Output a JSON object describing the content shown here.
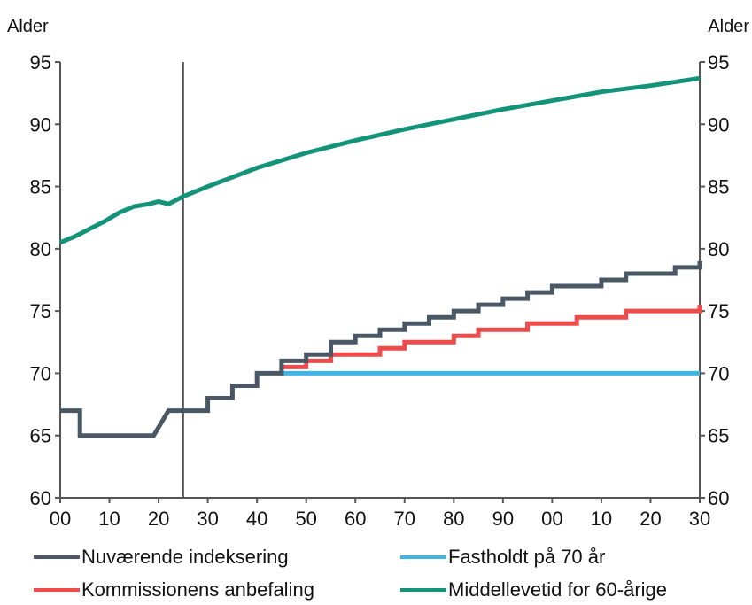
{
  "chart_data": {
    "type": "line",
    "title": "",
    "y_axis_left_label": "Alder",
    "y_axis_right_label": "Alder",
    "ylim": [
      60,
      95
    ],
    "yticks": [
      60,
      65,
      70,
      75,
      80,
      85,
      90,
      95
    ],
    "xlim": [
      2000,
      2130
    ],
    "xticks": [
      2000,
      2010,
      2020,
      2030,
      2040,
      2050,
      2060,
      2070,
      2080,
      2090,
      2100,
      2110,
      2120,
      2130
    ],
    "xtick_labels": [
      "00",
      "10",
      "20",
      "30",
      "40",
      "50",
      "60",
      "70",
      "80",
      "90",
      "00",
      "10",
      "20",
      "30"
    ],
    "reference_line_x": 2025,
    "grid": false,
    "legend_position": "bottom",
    "series": [
      {
        "name": "Nuværende indeksering",
        "color": "#4a5866",
        "step": true,
        "points": [
          [
            2000,
            67
          ],
          [
            2004,
            67
          ],
          [
            2004,
            65
          ],
          [
            2019,
            65
          ],
          [
            2022,
            67
          ],
          [
            2030,
            67
          ],
          [
            2030,
            68
          ],
          [
            2035,
            68
          ],
          [
            2035,
            69
          ],
          [
            2040,
            69
          ],
          [
            2040,
            70
          ],
          [
            2045,
            70
          ],
          [
            2045,
            71
          ],
          [
            2050,
            71
          ],
          [
            2050,
            71.5
          ],
          [
            2055,
            71.5
          ],
          [
            2055,
            72.5
          ],
          [
            2060,
            72.5
          ],
          [
            2060,
            73
          ],
          [
            2065,
            73
          ],
          [
            2065,
            73.5
          ],
          [
            2070,
            73.5
          ],
          [
            2070,
            74
          ],
          [
            2075,
            74
          ],
          [
            2075,
            74.5
          ],
          [
            2080,
            74.5
          ],
          [
            2080,
            75
          ],
          [
            2085,
            75
          ],
          [
            2085,
            75.5
          ],
          [
            2090,
            75.5
          ],
          [
            2090,
            76
          ],
          [
            2095,
            76
          ],
          [
            2095,
            76.5
          ],
          [
            2100,
            76.5
          ],
          [
            2100,
            77
          ],
          [
            2105,
            77
          ],
          [
            2105,
            77
          ],
          [
            2110,
            77
          ],
          [
            2110,
            77.5
          ],
          [
            2115,
            77.5
          ],
          [
            2115,
            78
          ],
          [
            2120,
            78
          ],
          [
            2120,
            78
          ],
          [
            2125,
            78
          ],
          [
            2125,
            78.5
          ],
          [
            2130,
            78.5
          ],
          [
            2130,
            79
          ]
        ]
      },
      {
        "name": "Fastholdt på 70 år",
        "color": "#3fb5e5",
        "step": true,
        "points": [
          [
            2045,
            70
          ],
          [
            2130,
            70
          ]
        ]
      },
      {
        "name": "Kommissionens anbefaling",
        "color": "#ee4b4b",
        "step": true,
        "points": [
          [
            2045,
            70
          ],
          [
            2045,
            70.5
          ],
          [
            2050,
            70.5
          ],
          [
            2050,
            71
          ],
          [
            2055,
            71
          ],
          [
            2055,
            71.5
          ],
          [
            2065,
            71.5
          ],
          [
            2065,
            72
          ],
          [
            2070,
            72
          ],
          [
            2070,
            72.5
          ],
          [
            2075,
            72.5
          ],
          [
            2080,
            72.5
          ],
          [
            2080,
            73
          ],
          [
            2085,
            73
          ],
          [
            2085,
            73.5
          ],
          [
            2095,
            73.5
          ],
          [
            2095,
            74
          ],
          [
            2100,
            74
          ],
          [
            2100,
            74
          ],
          [
            2105,
            74
          ],
          [
            2105,
            74.5
          ],
          [
            2115,
            74.5
          ],
          [
            2115,
            75
          ],
          [
            2130,
            75
          ],
          [
            2130,
            75.5
          ]
        ]
      },
      {
        "name": "Middellevetid for 60-årige",
        "color": "#13937a",
        "step": false,
        "points": [
          [
            2000,
            80.5
          ],
          [
            2003,
            81
          ],
          [
            2006,
            81.6
          ],
          [
            2009,
            82.2
          ],
          [
            2012,
            82.9
          ],
          [
            2015,
            83.4
          ],
          [
            2018,
            83.6
          ],
          [
            2020,
            83.8
          ],
          [
            2022,
            83.6
          ],
          [
            2025,
            84.2
          ],
          [
            2030,
            85
          ],
          [
            2040,
            86.5
          ],
          [
            2050,
            87.7
          ],
          [
            2060,
            88.7
          ],
          [
            2070,
            89.6
          ],
          [
            2080,
            90.4
          ],
          [
            2090,
            91.2
          ],
          [
            2100,
            91.9
          ],
          [
            2110,
            92.6
          ],
          [
            2120,
            93.1
          ],
          [
            2130,
            93.7
          ]
        ]
      }
    ]
  },
  "legend": {
    "items": [
      {
        "label": "Nuværende indeksering",
        "color": "#4a5866"
      },
      {
        "label": "Fastholdt på 70 år",
        "color": "#3fb5e5"
      },
      {
        "label": "Kommissionens anbefaling",
        "color": "#ee4b4b"
      },
      {
        "label": "Middellevetid for 60-årige",
        "color": "#13937a"
      }
    ]
  }
}
